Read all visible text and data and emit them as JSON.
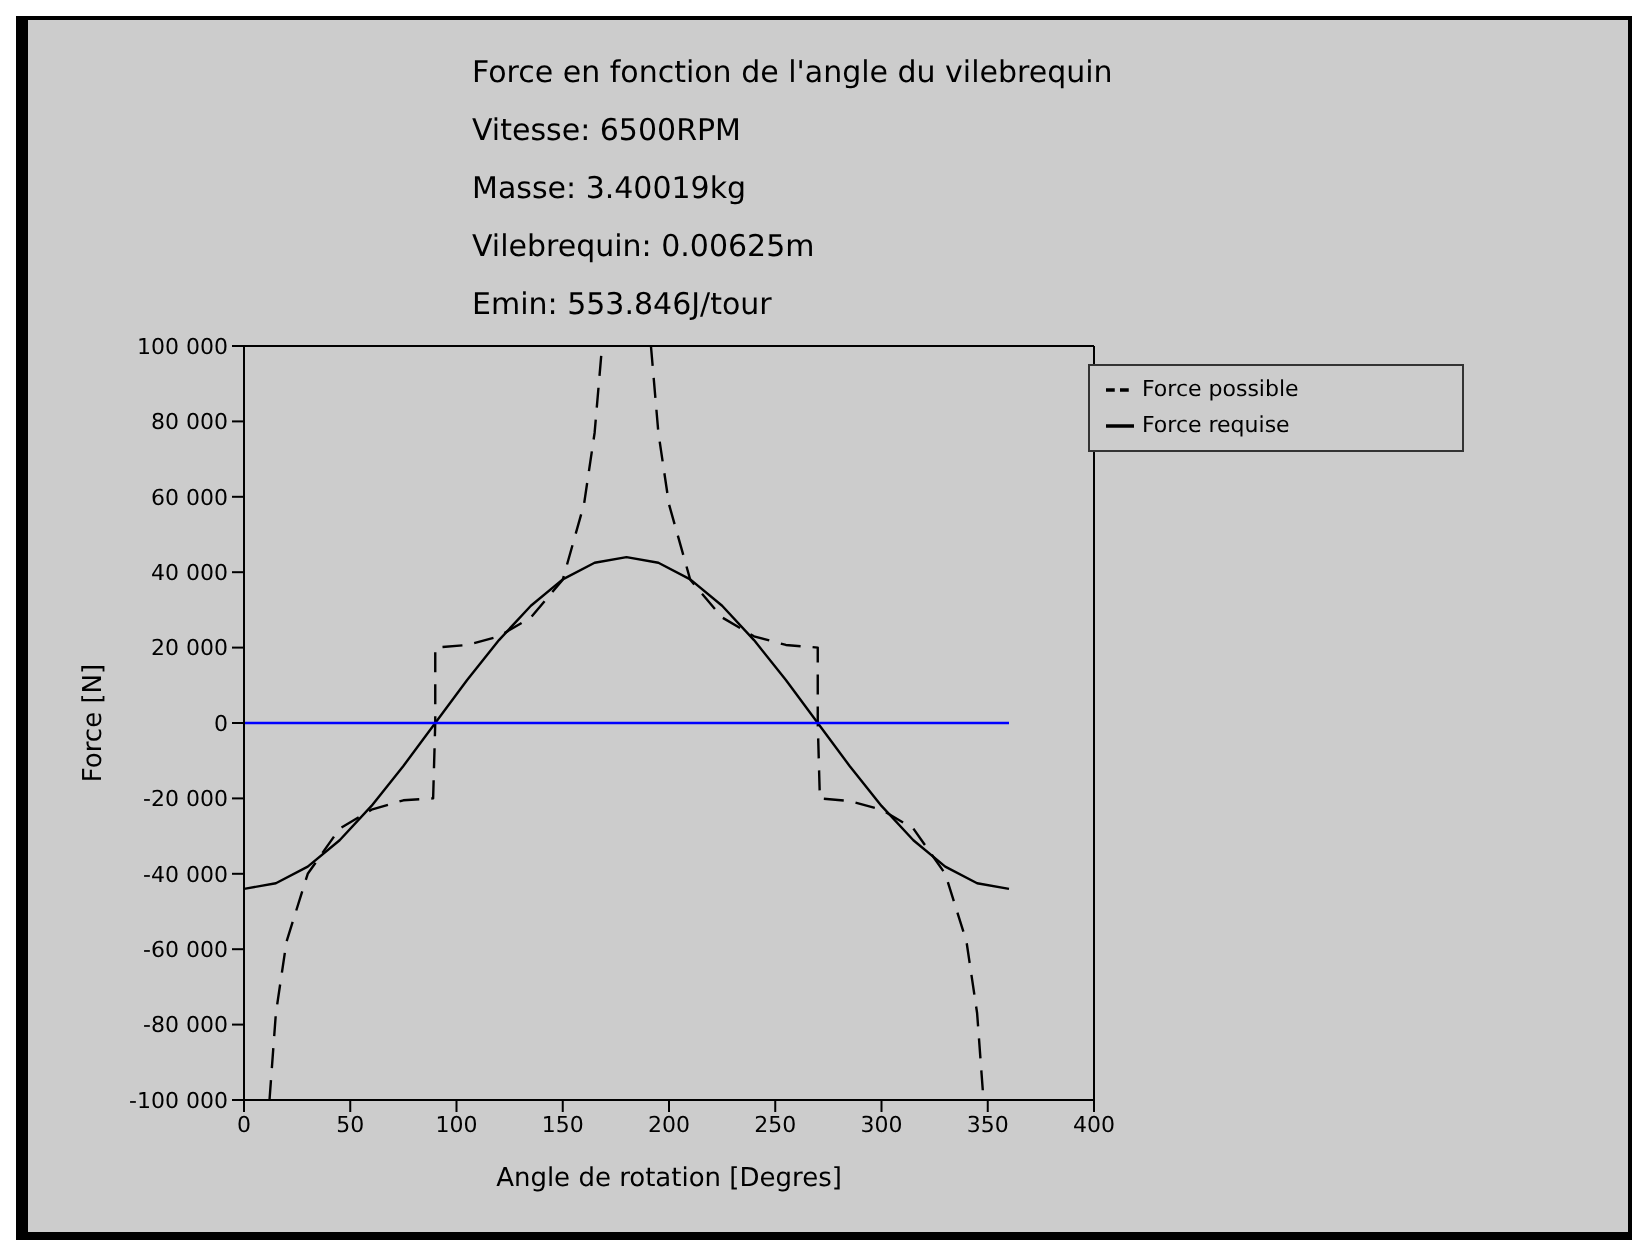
{
  "chart_data": {
    "type": "line",
    "title": "Force en fonction de l'angle du vilebrequin",
    "subtitle": "Vitesse: 6500RPM\nMasse: 3.40019kg\nVilebrequin: 0.00625m\nEmin: 553.846J/tour",
    "xlabel": "Angle de rotation [Degres]",
    "ylabel": "Force [N]",
    "xlim": [
      0,
      400
    ],
    "xticks": [
      0,
      50,
      100,
      150,
      200,
      250,
      300,
      350,
      400
    ],
    "ylim": [
      -100000,
      100000
    ],
    "yticks": [
      {
        "value": -100000,
        "label": "-100 000"
      },
      {
        "value": -80000,
        "label": "-80 000"
      },
      {
        "value": -60000,
        "label": "-60 000"
      },
      {
        "value": -40000,
        "label": "-40 000"
      },
      {
        "value": -20000,
        "label": "-20 000"
      },
      {
        "value": 0,
        "label": "0"
      },
      {
        "value": 20000,
        "label": "20 000"
      },
      {
        "value": 40000,
        "label": "40 000"
      },
      {
        "value": 60000,
        "label": "60 000"
      },
      {
        "value": 80000,
        "label": "80 000"
      },
      {
        "value": 100000,
        "label": "100 000"
      }
    ],
    "legend": "top right",
    "marker": "none",
    "series": [
      {
        "name": "Force possible",
        "color": "#000000",
        "line_style": "dashed",
        "x": [
          12,
          15,
          20,
          30,
          45,
          60,
          75,
          89,
          90,
          90,
          105,
          120,
          135,
          150,
          160,
          165,
          168.5,
          180,
          191.5,
          195,
          200,
          210,
          225,
          240,
          255,
          270,
          270,
          271,
          285,
          300,
          315,
          330,
          340,
          345,
          348
        ],
        "values": [
          -100000,
          -77000,
          -58000,
          -40000,
          -28000,
          -23000,
          -20500,
          -20000,
          0,
          20000,
          20700,
          23000,
          28000,
          38000,
          58000,
          77000,
          100000,
          null,
          100000,
          77000,
          58000,
          38000,
          28000,
          23000,
          20700,
          20000,
          0,
          -20000,
          -20700,
          -23000,
          -28000,
          -40000,
          -58000,
          -77000,
          -100000
        ]
      },
      {
        "name": "Force requise",
        "color": "#000000",
        "line_style": "solid",
        "x": [
          0,
          15,
          30,
          45,
          60,
          75,
          90,
          105,
          120,
          135,
          150,
          165,
          180,
          195,
          210,
          225,
          240,
          255,
          270,
          285,
          300,
          315,
          330,
          345,
          360
        ],
        "values": [
          -44000,
          -42500,
          -38100,
          -31100,
          -22000,
          -11400,
          0,
          11400,
          22000,
          31100,
          38100,
          42500,
          44000,
          42500,
          38100,
          31100,
          22000,
          11400,
          0,
          -11400,
          -22000,
          -31100,
          -38100,
          -42500,
          -44000
        ]
      },
      {
        "color": "#0000ff",
        "line_style": "solid",
        "x": [
          0,
          360
        ],
        "values": [
          0,
          0
        ]
      }
    ]
  }
}
